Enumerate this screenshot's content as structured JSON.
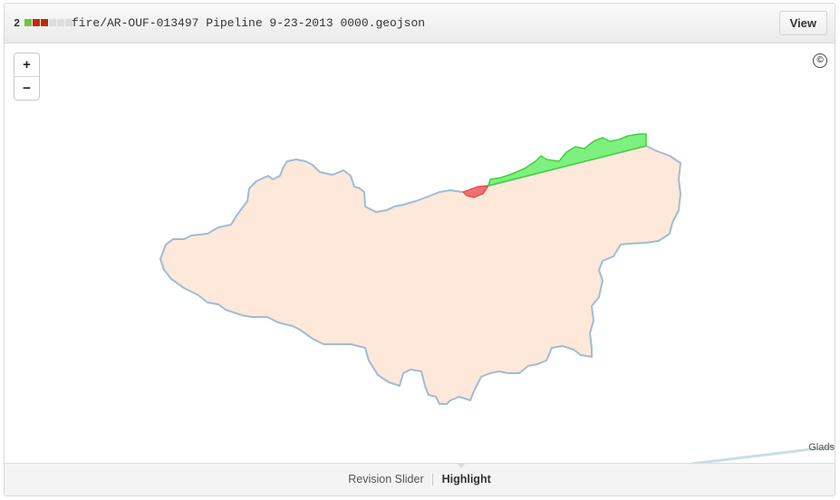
{
  "header": {
    "diff_count": "2",
    "diffstat": [
      "#6cc644",
      "#bd2c00",
      "#bd2c00",
      "#dddddd",
      "#dddddd",
      "#dddddd"
    ],
    "file_path": "fire/AR-OUF-013497 Pipeline 9-23-2013 0000.geojson",
    "view_label": "View"
  },
  "map": {
    "zoom_in_label": "+",
    "zoom_out_label": "−",
    "attribution_symbol": "©",
    "place_label": "Glads",
    "colors": {
      "unchanged_fill": "#fde8d9",
      "unchanged_stroke": "#9fbcd6",
      "added_fill": "#7ef07e",
      "added_stroke": "#3fd23f",
      "removed_fill": "#f06f6f",
      "removed_stroke": "#e04646",
      "road": "#c9dfe2"
    }
  },
  "footer": {
    "tabs": [
      "Revision Slider",
      "Highlight"
    ],
    "active_tab": "Highlight"
  }
}
